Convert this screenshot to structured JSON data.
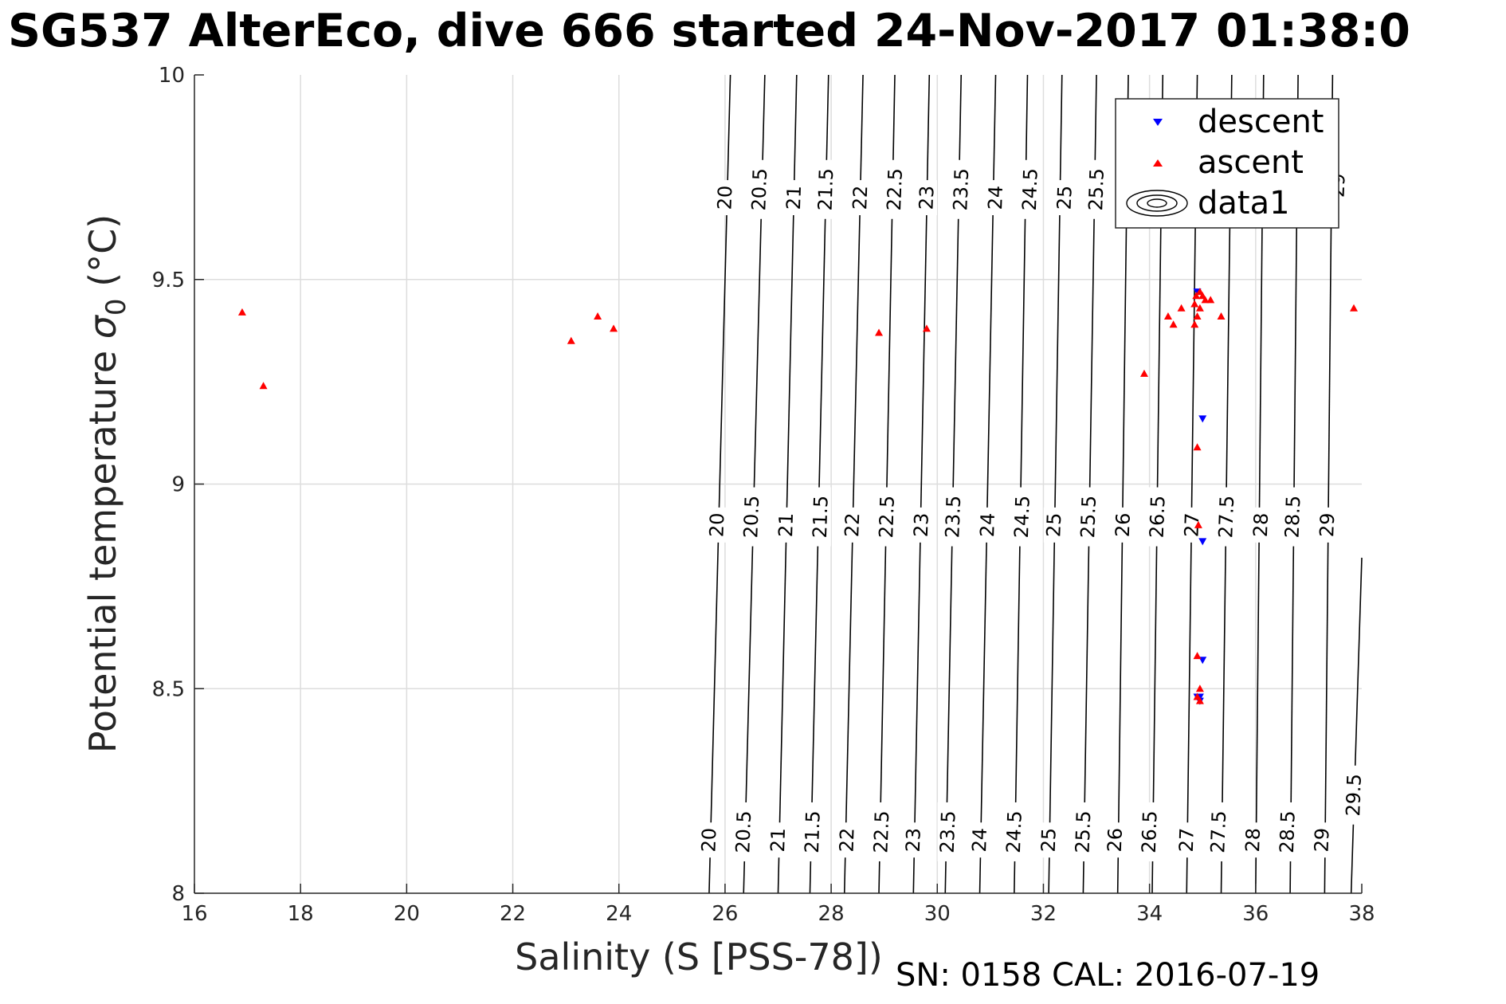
{
  "title": "SG537 AlterEco, dive 666 started 24-Nov-2017 01:38:0",
  "footer": "SN: 0158  CAL: 2016-07-19",
  "chart_data": {
    "type": "scatter",
    "xlabel": "Salinity (S [PSS-78])",
    "ylabel_main": "Potential temperature ",
    "ylabel_sigma": "σ",
    "ylabel_sub": "0",
    "ylabel_unit": " (°C)",
    "xlim": [
      16,
      38
    ],
    "ylim": [
      8,
      10
    ],
    "grid": true,
    "legend_position": "top-right",
    "x_ticks": [
      "16",
      "18",
      "20",
      "22",
      "24",
      "26",
      "28",
      "30",
      "32",
      "34",
      "36",
      "38"
    ],
    "y_ticks": [
      "8",
      "8.5",
      "9",
      "9.5",
      "10"
    ],
    "legend": [
      "descent",
      "ascent",
      "data1"
    ],
    "series": [
      {
        "name": "descent",
        "marker": "triangle-down",
        "color": "#0000ff",
        "points": [
          [
            34.9,
            9.47
          ],
          [
            35.0,
            9.16
          ],
          [
            35.0,
            8.86
          ],
          [
            35.0,
            8.57
          ],
          [
            34.95,
            8.48
          ],
          [
            34.95,
            8.47
          ],
          [
            34.9,
            8.48
          ]
        ]
      },
      {
        "name": "ascent",
        "marker": "triangle-up",
        "color": "#ff0000",
        "points": [
          [
            16.9,
            9.42
          ],
          [
            17.3,
            9.24
          ],
          [
            23.1,
            9.35
          ],
          [
            23.6,
            9.41
          ],
          [
            23.9,
            9.38
          ],
          [
            28.9,
            9.37
          ],
          [
            29.8,
            9.38
          ],
          [
            33.9,
            9.27
          ],
          [
            34.35,
            9.41
          ],
          [
            34.45,
            9.39
          ],
          [
            34.6,
            9.43
          ],
          [
            34.85,
            9.39
          ],
          [
            34.85,
            9.44
          ],
          [
            34.88,
            9.46
          ],
          [
            34.9,
            9.41
          ],
          [
            34.95,
            9.43
          ],
          [
            34.95,
            9.47
          ],
          [
            35.0,
            9.46
          ],
          [
            35.05,
            9.45
          ],
          [
            35.15,
            9.45
          ],
          [
            35.35,
            9.41
          ],
          [
            37.85,
            9.43
          ],
          [
            34.9,
            9.09
          ],
          [
            34.92,
            8.9
          ],
          [
            34.9,
            8.58
          ],
          [
            34.95,
            8.5
          ],
          [
            34.9,
            8.48
          ],
          [
            34.95,
            8.47
          ]
        ]
      },
      {
        "name": "data1",
        "type": "contour",
        "color": "#000000",
        "levels": [
          20,
          20.5,
          21,
          21.5,
          22,
          22.5,
          23,
          23.5,
          24,
          24.5,
          25,
          25.5,
          26,
          26.5,
          27,
          27.5,
          28,
          28.5,
          29,
          29.5
        ],
        "line_segments": [
          [
            [
              25.7,
              8.0
            ],
            [
              26.1,
              10.0
            ]
          ],
          [
            [
              26.35,
              8.0
            ],
            [
              26.75,
              10.0
            ]
          ],
          [
            [
              27.0,
              8.0
            ],
            [
              27.35,
              10.0
            ]
          ],
          [
            [
              27.6,
              8.0
            ],
            [
              27.95,
              10.0
            ]
          ],
          [
            [
              28.25,
              8.0
            ],
            [
              28.6,
              10.0
            ]
          ],
          [
            [
              28.9,
              8.0
            ],
            [
              29.2,
              10.0
            ]
          ],
          [
            [
              29.55,
              8.0
            ],
            [
              29.85,
              10.0
            ]
          ],
          [
            [
              30.15,
              8.0
            ],
            [
              30.45,
              10.0
            ]
          ],
          [
            [
              30.8,
              8.0
            ],
            [
              31.1,
              10.0
            ]
          ],
          [
            [
              31.45,
              8.0
            ],
            [
              31.7,
              10.0
            ]
          ],
          [
            [
              32.1,
              8.0
            ],
            [
              32.35,
              10.0
            ]
          ],
          [
            [
              32.75,
              8.0
            ],
            [
              33.0,
              10.0
            ]
          ],
          [
            [
              33.4,
              8.0
            ],
            [
              33.6,
              10.0
            ]
          ],
          [
            [
              34.05,
              8.0
            ],
            [
              34.25,
              10.0
            ]
          ],
          [
            [
              34.7,
              8.0
            ],
            [
              34.9,
              10.0
            ]
          ],
          [
            [
              35.35,
              8.0
            ],
            [
              35.55,
              10.0
            ]
          ],
          [
            [
              36.0,
              8.0
            ],
            [
              36.15,
              10.0
            ]
          ],
          [
            [
              36.65,
              8.0
            ],
            [
              36.8,
              10.0
            ]
          ],
          [
            [
              37.3,
              8.0
            ],
            [
              37.45,
              10.0
            ]
          ],
          [
            [
              37.8,
              8.0
            ],
            [
              38.0,
              8.82
            ]
          ]
        ],
        "labels": [
          {
            "text": "20",
            "x": 25.7,
            "y": 8.13
          },
          {
            "text": "20.5",
            "x": 26.35,
            "y": 8.15
          },
          {
            "text": "21",
            "x": 27.0,
            "y": 8.13
          },
          {
            "text": "21.5",
            "x": 27.65,
            "y": 8.15
          },
          {
            "text": "22",
            "x": 28.3,
            "y": 8.13
          },
          {
            "text": "22.5",
            "x": 28.95,
            "y": 8.15
          },
          {
            "text": "23",
            "x": 29.55,
            "y": 8.13
          },
          {
            "text": "23.5",
            "x": 30.2,
            "y": 8.15
          },
          {
            "text": "24",
            "x": 30.8,
            "y": 8.13
          },
          {
            "text": "24.5",
            "x": 31.45,
            "y": 8.15
          },
          {
            "text": "25",
            "x": 32.1,
            "y": 8.13
          },
          {
            "text": "25.5",
            "x": 32.75,
            "y": 8.15
          },
          {
            "text": "26",
            "x": 33.35,
            "y": 8.13
          },
          {
            "text": "26.5",
            "x": 34.0,
            "y": 8.15
          },
          {
            "text": "27",
            "x": 34.7,
            "y": 8.13
          },
          {
            "text": "27.5",
            "x": 35.3,
            "y": 8.15
          },
          {
            "text": "28",
            "x": 35.95,
            "y": 8.13
          },
          {
            "text": "28.5",
            "x": 36.6,
            "y": 8.15
          },
          {
            "text": "29",
            "x": 37.25,
            "y": 8.13
          },
          {
            "text": "29.5",
            "x": 37.85,
            "y": 8.24
          },
          {
            "text": "20",
            "x": 25.85,
            "y": 8.9
          },
          {
            "text": "20.5",
            "x": 26.5,
            "y": 8.92
          },
          {
            "text": "21",
            "x": 27.15,
            "y": 8.9
          },
          {
            "text": "21.5",
            "x": 27.8,
            "y": 8.92
          },
          {
            "text": "22",
            "x": 28.4,
            "y": 8.9
          },
          {
            "text": "22.5",
            "x": 29.05,
            "y": 8.92
          },
          {
            "text": "23",
            "x": 29.7,
            "y": 8.9
          },
          {
            "text": "23.5",
            "x": 30.3,
            "y": 8.92
          },
          {
            "text": "24",
            "x": 30.95,
            "y": 8.9
          },
          {
            "text": "24.5",
            "x": 31.6,
            "y": 8.92
          },
          {
            "text": "25",
            "x": 32.2,
            "y": 8.9
          },
          {
            "text": "25.5",
            "x": 32.85,
            "y": 8.92
          },
          {
            "text": "26",
            "x": 33.5,
            "y": 8.9
          },
          {
            "text": "26.5",
            "x": 34.15,
            "y": 8.92
          },
          {
            "text": "27",
            "x": 34.8,
            "y": 8.9
          },
          {
            "text": "27.5",
            "x": 35.45,
            "y": 8.92
          },
          {
            "text": "28",
            "x": 36.1,
            "y": 8.9
          },
          {
            "text": "28.5",
            "x": 36.7,
            "y": 8.92
          },
          {
            "text": "29",
            "x": 37.35,
            "y": 8.9
          },
          {
            "text": "20",
            "x": 26.0,
            "y": 9.7
          },
          {
            "text": "20.5",
            "x": 26.65,
            "y": 9.72
          },
          {
            "text": "21",
            "x": 27.3,
            "y": 9.7
          },
          {
            "text": "21.5",
            "x": 27.9,
            "y": 9.72
          },
          {
            "text": "22",
            "x": 28.55,
            "y": 9.7
          },
          {
            "text": "22.5",
            "x": 29.2,
            "y": 9.72
          },
          {
            "text": "23",
            "x": 29.8,
            "y": 9.7
          },
          {
            "text": "23.5",
            "x": 30.45,
            "y": 9.72
          },
          {
            "text": "24",
            "x": 31.1,
            "y": 9.7
          },
          {
            "text": "24.5",
            "x": 31.75,
            "y": 9.72
          },
          {
            "text": "25",
            "x": 32.4,
            "y": 9.7
          },
          {
            "text": "25.5",
            "x": 33.0,
            "y": 9.72
          },
          {
            "text": "29",
            "x": 37.55,
            "y": 9.73
          }
        ]
      }
    ]
  }
}
